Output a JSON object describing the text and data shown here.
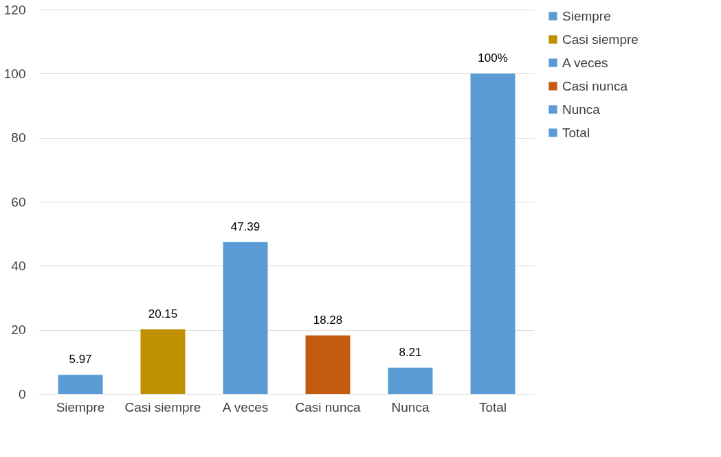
{
  "chart_data": {
    "type": "bar",
    "categories": [
      "Siempre",
      "Casi siempre",
      "A veces",
      "Casi nunca",
      "Nunca",
      "Total"
    ],
    "series": [
      {
        "name": "Siempre",
        "color": "#5b9bd5",
        "values": [
          5.97,
          null,
          null,
          null,
          null,
          null
        ],
        "value_labels": [
          "5.97",
          null,
          null,
          null,
          null,
          null
        ]
      },
      {
        "name": "Casi siempre",
        "color": "#bf9000",
        "values": [
          null,
          20.15,
          null,
          null,
          null,
          null
        ],
        "value_labels": [
          null,
          "20.15",
          null,
          null,
          null,
          null
        ]
      },
      {
        "name": "A veces",
        "color": "#5b9bd5",
        "values": [
          null,
          null,
          47.39,
          null,
          null,
          null
        ],
        "value_labels": [
          null,
          null,
          "47.39",
          null,
          null,
          null
        ]
      },
      {
        "name": "Casi nunca",
        "color": "#c55a11",
        "values": [
          null,
          null,
          null,
          18.28,
          null,
          null
        ],
        "value_labels": [
          null,
          null,
          null,
          "18.28",
          null,
          null
        ]
      },
      {
        "name": "Nunca",
        "color": "#5b9bd5",
        "values": [
          null,
          null,
          null,
          null,
          8.21,
          null
        ],
        "value_labels": [
          null,
          null,
          null,
          null,
          "8.21",
          null
        ]
      },
      {
        "name": "Total",
        "color": "#5b9bd5",
        "values": [
          null,
          null,
          null,
          null,
          null,
          100
        ],
        "value_labels": [
          null,
          null,
          null,
          null,
          null,
          "100%"
        ]
      }
    ],
    "ylim": [
      0,
      120
    ],
    "yticks": [
      0,
      20,
      40,
      60,
      80,
      100,
      120
    ],
    "grid": "y",
    "legend": "right"
  }
}
